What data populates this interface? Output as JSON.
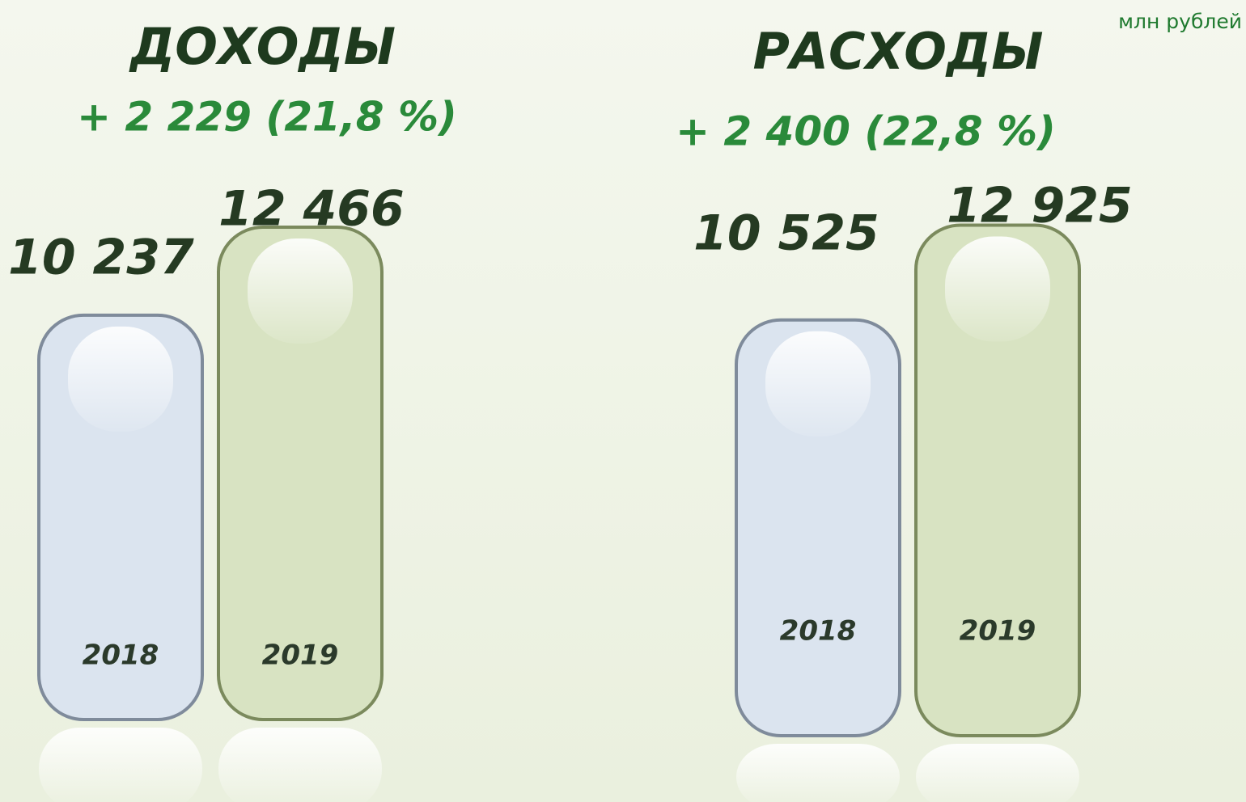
{
  "unit": "млн рублей",
  "chart_data": [
    {
      "type": "bar",
      "title": "ДОХОДЫ",
      "subtitle": "+ 2 229 (21,8 %)",
      "categories": [
        "2018",
        "2019"
      ],
      "values": [
        10237,
        12466
      ],
      "value_labels": [
        "10 237",
        "12 466"
      ],
      "colors": [
        "#dbe4ef",
        "#d8e3c2"
      ],
      "ylim": [
        0,
        14000
      ]
    },
    {
      "type": "bar",
      "title": "РАСХОДЫ",
      "subtitle": "+ 2 400 (22,8 %)",
      "categories": [
        "2018",
        "2019"
      ],
      "values": [
        10525,
        12925
      ],
      "value_labels": [
        "10 525",
        "12 925"
      ],
      "colors": [
        "#dbe4ef",
        "#d8e3c2"
      ],
      "ylim": [
        0,
        14000
      ]
    }
  ]
}
